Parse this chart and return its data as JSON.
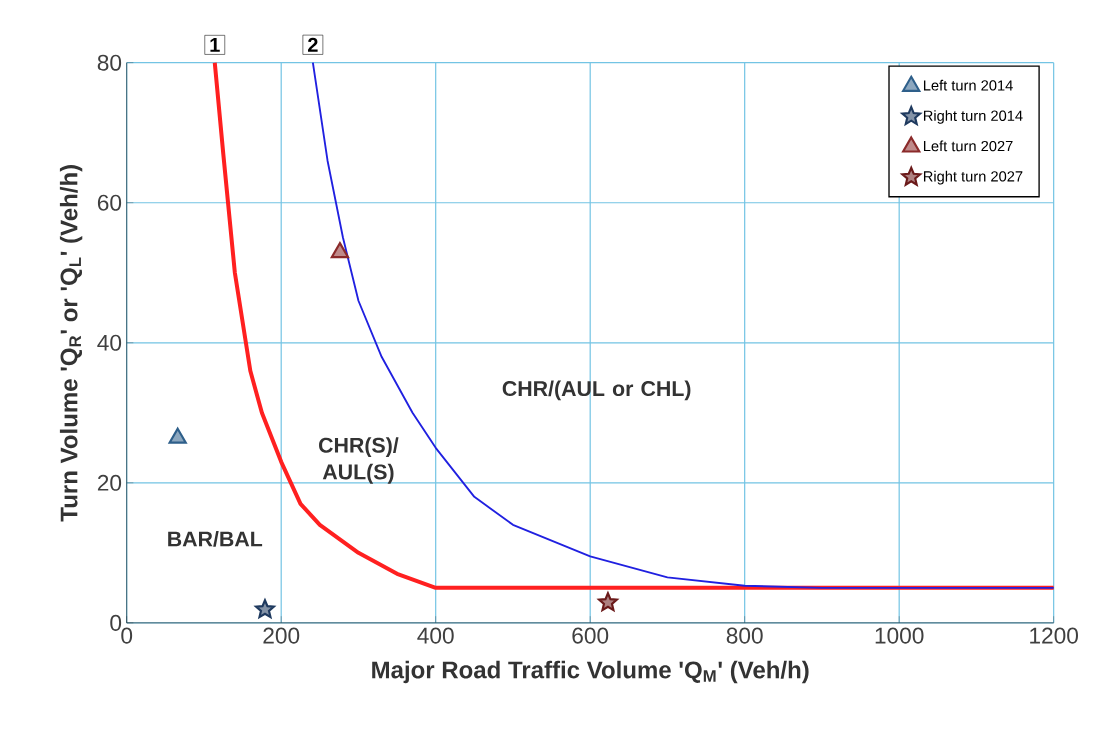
{
  "chart_data": {
    "type": "line",
    "xlabel": "Major Road Traffic Volume 'Q$_{M}$' (Veh/h)",
    "ylabel": "Turn Volume 'Q$_{R}$' or 'Q$_{L}$' (Veh/h)",
    "xlim": [
      0,
      1200
    ],
    "xticks": [
      0,
      200,
      400,
      600,
      800,
      1000,
      1200
    ],
    "ylim": [
      0,
      80
    ],
    "yticks": [
      0,
      20,
      40,
      60,
      80
    ],
    "grid": true,
    "legend": "top right",
    "series": [
      {
        "color": "#ff2020",
        "marker": "none",
        "x": [
          114,
          125,
          140,
          160,
          175,
          200,
          225,
          250,
          300,
          350,
          400,
          1200
        ],
        "values": [
          80,
          67,
          50,
          36,
          30,
          23,
          17,
          14,
          10,
          7,
          5,
          5
        ]
      },
      {
        "color": "#2020e0",
        "marker": "none",
        "x": [
          241,
          260,
          280,
          300,
          330,
          370,
          400,
          450,
          500,
          600,
          700,
          800,
          900,
          1200
        ],
        "values": [
          80,
          66,
          55,
          46,
          38,
          30,
          25,
          18,
          14,
          9.5,
          6.5,
          5.3,
          5,
          5
        ]
      },
      {
        "type": "scatter",
        "name": "Left turn 2014",
        "color": "#2e5f8a",
        "marker": "triangle",
        "x": [
          66
        ],
        "values": [
          26.4
        ]
      },
      {
        "type": "scatter",
        "name": "Right turn 2014",
        "color": "#1f3a5f",
        "marker": "star",
        "x": [
          179
        ],
        "values": [
          1.9
        ]
      },
      {
        "type": "scatter",
        "name": "Left turn 2027",
        "color": "#8b2a2a",
        "marker": "triangle",
        "x": [
          276
        ],
        "values": [
          52.9
        ]
      },
      {
        "type": "scatter",
        "name": "Right turn 2027",
        "color": "#6b1a1a",
        "marker": "star",
        "x": [
          623
        ],
        "values": [
          2.9
        ]
      }
    ],
    "annotations": [
      {
        "text": "1",
        "x": 114,
        "y": 80
      },
      {
        "text": "2",
        "x": 241,
        "y": 80
      },
      "BAR/BAL",
      "CHR(S)/ AUL(S)",
      "CHR/(AUL or CHL)"
    ]
  }
}
